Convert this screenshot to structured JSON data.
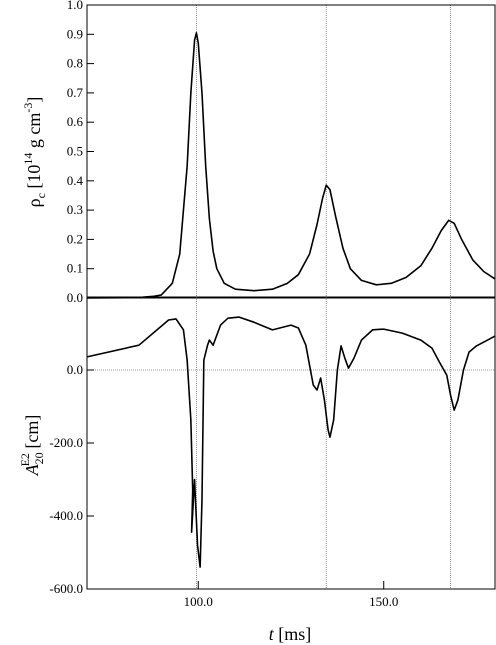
{
  "chart_data": [
    {
      "type": "line",
      "ylabel": [
        "ρ",
        "c",
        " [10",
        "14",
        " g cm",
        "-3",
        "]"
      ],
      "x": [
        70,
        80,
        85,
        88,
        90,
        93,
        95,
        97,
        98,
        99,
        99.5,
        100,
        101,
        102,
        103,
        104,
        105,
        107,
        110,
        115,
        120,
        124,
        127,
        130,
        132,
        133.5,
        134.5,
        135.5,
        137,
        139,
        141,
        144,
        148,
        152,
        156,
        160,
        163,
        165.5,
        167.5,
        169,
        171,
        174,
        177,
        180
      ],
      "values": [
        0,
        0.001,
        0.003,
        0.006,
        0.01,
        0.05,
        0.15,
        0.45,
        0.7,
        0.88,
        0.905,
        0.87,
        0.7,
        0.45,
        0.27,
        0.16,
        0.1,
        0.05,
        0.03,
        0.025,
        0.03,
        0.05,
        0.08,
        0.15,
        0.25,
        0.34,
        0.385,
        0.37,
        0.28,
        0.17,
        0.1,
        0.06,
        0.045,
        0.05,
        0.07,
        0.11,
        0.17,
        0.23,
        0.265,
        0.255,
        0.2,
        0.13,
        0.09,
        0.065
      ],
      "color": "#000000",
      "xlim": [
        70,
        180
      ],
      "ylim": [
        0,
        1
      ],
      "yticks": [
        {
          "value": 0,
          "label": "0.0"
        },
        0.1,
        0.2,
        0.3,
        0.4,
        0.5,
        0.6,
        0.7,
        0.8,
        0.9,
        {
          "value": 1,
          "label": "1.0"
        }
      ],
      "vlines": [
        99.5,
        134.5,
        168
      ]
    },
    {
      "type": "line",
      "ylabel": [
        "A",
        "20",
        "E2",
        " [cm]"
      ],
      "xlabel": [
        "t",
        " [ms]"
      ],
      "x": [
        70,
        84,
        92,
        94,
        96,
        97,
        98,
        98.5,
        98.2,
        99,
        99.8,
        100.5,
        101,
        101.5,
        102.5,
        103,
        104,
        106,
        108,
        111,
        115,
        120,
        125,
        127,
        129,
        131,
        132,
        133,
        134,
        135,
        135.5,
        136.5,
        137.5,
        138.5,
        139.5,
        140.5,
        142,
        144,
        147,
        150,
        155,
        160,
        163,
        165,
        167,
        168,
        169,
        170,
        171.5,
        173,
        175,
        178,
        180
      ],
      "values": [
        36,
        68,
        137,
        140,
        110,
        27,
        -137,
        -330,
        -444,
        -300,
        -480,
        -540,
        -356,
        27,
        68,
        82,
        68,
        123,
        142,
        145,
        131,
        110,
        123,
        115,
        68,
        -41,
        -55,
        -22,
        -82,
        -164,
        -184,
        -137,
        0,
        66,
        33,
        5,
        33,
        82,
        110,
        112,
        101,
        82,
        60,
        22,
        -14,
        -68,
        -110,
        -82,
        0,
        49,
        66,
        82,
        93
      ],
      "color": "#000000",
      "xlim": [
        70,
        180
      ],
      "ylim": [
        -600,
        200
      ],
      "xticks": [
        {
          "value": 100,
          "label": "100.0"
        },
        {
          "value": 150,
          "label": "150.0"
        }
      ],
      "yticks": [
        {
          "value": -600,
          "label": "-600.0"
        },
        {
          "value": -400,
          "label": "-400.0"
        },
        {
          "value": -200,
          "label": "-200.0"
        },
        {
          "value": 0,
          "label": "0.0"
        }
      ],
      "vlines": [
        99.5,
        134.5,
        168
      ],
      "hlines": [
        0
      ]
    }
  ]
}
